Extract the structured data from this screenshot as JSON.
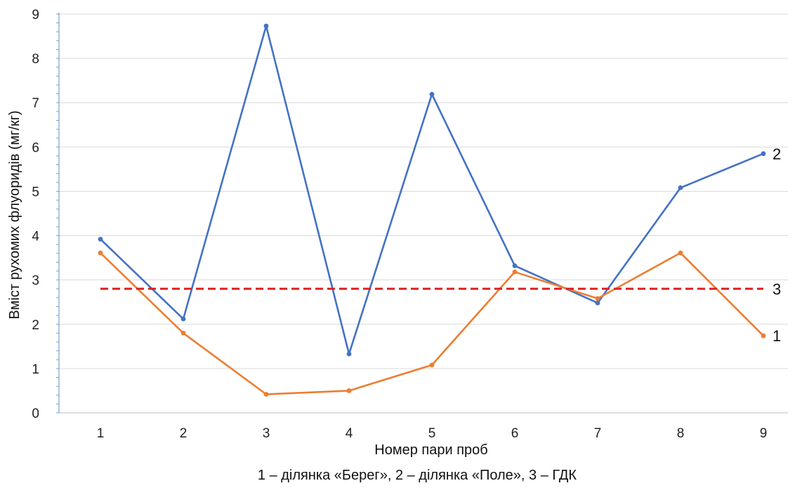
{
  "chart_data": {
    "type": "line",
    "title": "",
    "xlabel": "Номер пари проб",
    "ylabel": "Вміст рухомих флуоридів  (мг/кг)",
    "caption": "1 – ділянка «Берег», 2 – ділянка «Поле», 3 – ГДК",
    "categories": [
      "1",
      "2",
      "3",
      "4",
      "5",
      "6",
      "7",
      "8",
      "9"
    ],
    "ylim": [
      0,
      9
    ],
    "yticks": [
      "0",
      "1",
      "2",
      "3",
      "4",
      "5",
      "6",
      "7",
      "8",
      "9"
    ],
    "grid": "horizontal",
    "series": [
      {
        "name": "2",
        "color": "#4472c4",
        "style": "solid",
        "values": [
          3.92,
          2.12,
          8.73,
          1.33,
          7.19,
          3.32,
          2.48,
          5.08,
          5.85
        ]
      },
      {
        "name": "1",
        "color": "#ed7d31",
        "style": "solid",
        "values": [
          3.61,
          1.8,
          0.42,
          0.5,
          1.08,
          3.18,
          2.58,
          3.61,
          1.74
        ]
      },
      {
        "name": "3",
        "color": "#e02020",
        "style": "dashed",
        "values": [
          2.8,
          2.8,
          2.8,
          2.8,
          2.8,
          2.8,
          2.8,
          2.8,
          2.8
        ]
      }
    ]
  }
}
